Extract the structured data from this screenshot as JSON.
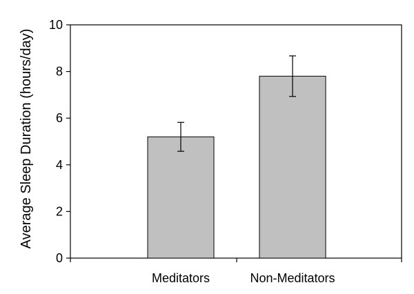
{
  "chart_data": {
    "type": "bar",
    "title": "",
    "xlabel": "",
    "ylabel": "Average Sleep Duration (hours/day)",
    "categories": [
      "Meditators",
      "Non-Meditators"
    ],
    "values": [
      5.2,
      7.8
    ],
    "error": [
      0.62,
      0.87
    ],
    "ylim": [
      0,
      10
    ],
    "yticks": [
      0,
      2,
      4,
      6,
      8,
      10
    ],
    "grid": false,
    "bar_color": "#c0c0c0"
  }
}
